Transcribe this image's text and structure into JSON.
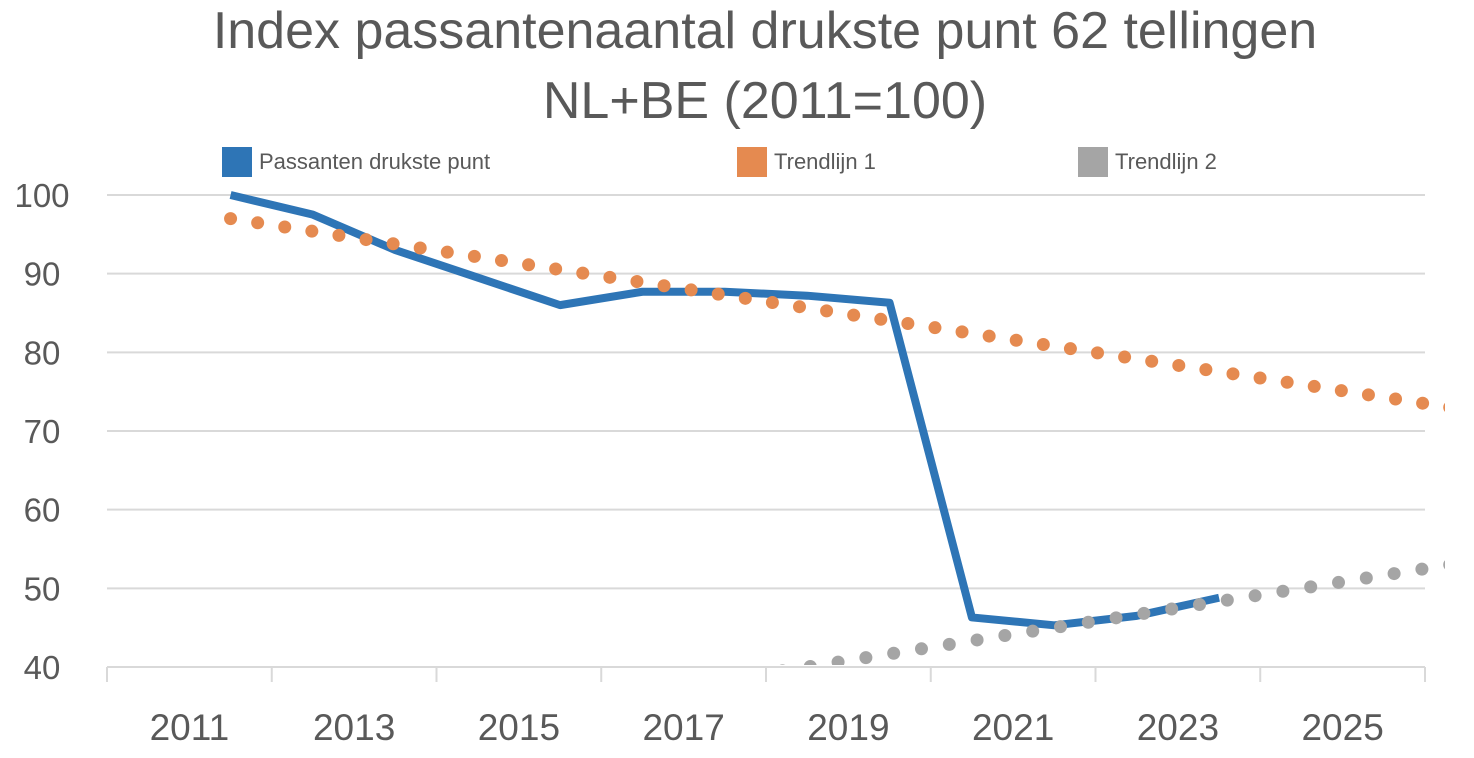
{
  "chart_data": {
    "type": "line",
    "title_lines": [
      "Index passantenaantal drukste punt 62 tellingen",
      "NL+BE (2011=100)"
    ],
    "xlabel": "",
    "ylabel": "",
    "ylim": [
      40,
      100
    ],
    "yticks": [
      40,
      50,
      60,
      70,
      80,
      90,
      100
    ],
    "xticks": [
      2011,
      2013,
      2015,
      2017,
      2019,
      2021,
      2023,
      2025
    ],
    "xlim": [
      2010,
      2026
    ],
    "grid": true,
    "legend_position": "top",
    "series": [
      {
        "name": "Passanten drukste punt",
        "style": "solid",
        "color": "#2E75B6",
        "x": [
          2011.5,
          2012.5,
          2013.5,
          2014.5,
          2015.5,
          2016.5,
          2017.5,
          2018.5,
          2019.5,
          2020.5,
          2021.5,
          2022.5,
          2023.5
        ],
        "values": [
          100,
          97.5,
          93,
          89.5,
          86,
          87.7,
          87.7,
          87.2,
          86.3,
          46.3,
          45.3,
          46.5,
          48.8
        ]
      },
      {
        "name": "Trendlijn 1",
        "style": "dotted",
        "color": "#E58A50",
        "x": [
          2011.5,
          2026.3
        ],
        "values": [
          97,
          73
        ]
      },
      {
        "name": "Trendlijn 2",
        "style": "dotted",
        "color": "#A5A5A5",
        "x": [
          2018.2,
          2026.3
        ],
        "values": [
          39.5,
          53
        ]
      }
    ]
  }
}
